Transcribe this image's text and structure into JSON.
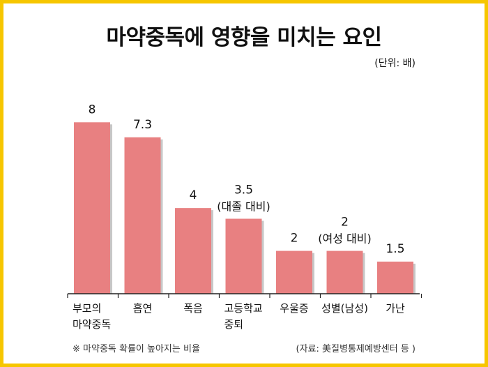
{
  "page": {
    "title": "마약중독에 영향을 미치는 요인",
    "unit_note": "(단위: 배)",
    "footnote_left": "※ 마약중독 확률이 높아지는 비율",
    "footnote_right": "(자료: 美질병통제예방센터 등 )"
  },
  "colors": {
    "bar": "#e88081",
    "bar_shadow": "#c7c7c7",
    "frame": "#f6c600",
    "axis": "#222222",
    "text": "#111111"
  },
  "chart_data": {
    "type": "bar",
    "title": "마약중독에 영향을 미치는 요인",
    "unit": "(단위: 배)",
    "categories": [
      [
        "부모의",
        "마약중독"
      ],
      [
        "흡연"
      ],
      [
        "폭음"
      ],
      [
        "고등학교",
        "중퇴"
      ],
      [
        "우울증"
      ],
      [
        "성별(남성)"
      ],
      [
        "가난"
      ]
    ],
    "values": [
      8,
      7.3,
      4,
      3.5,
      2,
      2,
      1.5
    ],
    "value_labels": [
      "8",
      "7.3",
      "4",
      "3.5",
      "2",
      "2",
      "1.5"
    ],
    "annotations": [
      "",
      "",
      "",
      "(대졸 대비)",
      "",
      "(여성 대비)",
      ""
    ],
    "ylim": [
      0,
      9.8
    ],
    "grid": false,
    "legend": "none"
  }
}
